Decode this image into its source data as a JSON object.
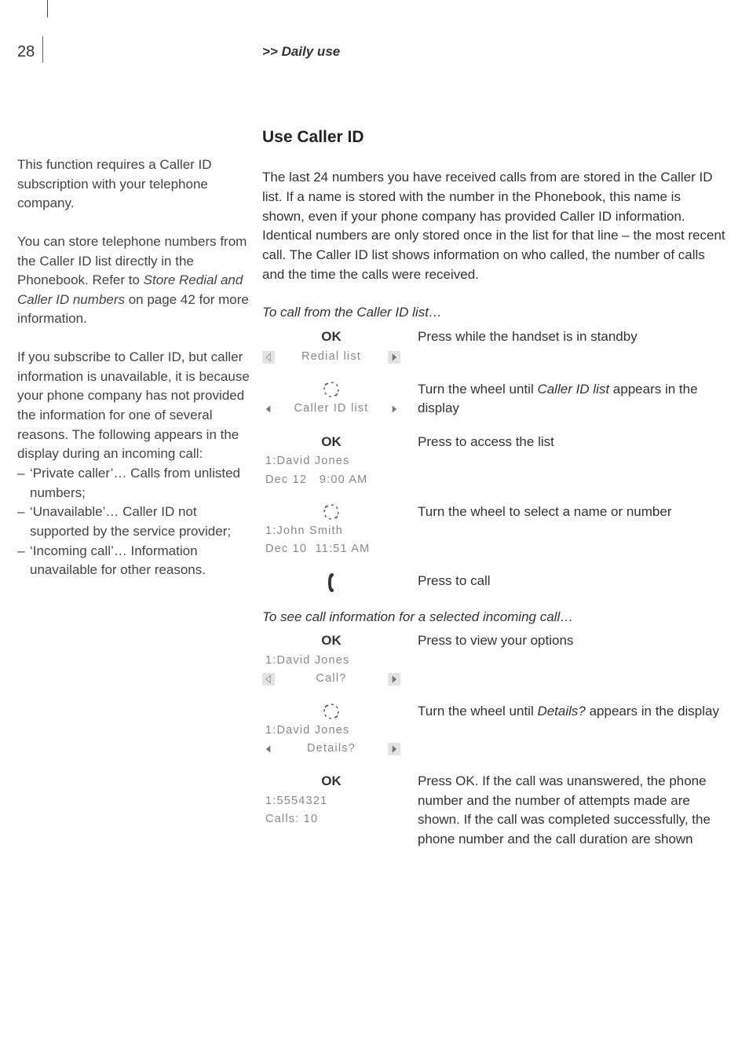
{
  "page_number": "28",
  "running_head": ">> Daily use",
  "sidebar": {
    "p1": "This function requires a Caller ID subscription with your telephone company.",
    "p2_a": "You can store telephone numbers from the Caller ID list directly in the Phonebook. Refer to ",
    "p2_ital": "Store Redial and Caller ID numbers",
    "p2_b": " on page 42 for more information.",
    "p3": "If you subscribe to Caller ID, but caller information is unavailable, it is because your phone company has not provided the information for one of several reasons. The following appears in the display during an incoming call:",
    "bullets": [
      "‘Private caller’… Calls from unlisted numbers;",
      "‘Unavailable’… Caller ID not supported by the service provider;",
      "‘Incoming call’… Information unavailable for other reasons."
    ]
  },
  "main": {
    "title": "Use Caller ID",
    "intro": "The last 24 numbers you have received calls from are stored in the Caller ID list. If a name is stored with the number in the Phonebook, this name is shown, even if your phone company has provided Caller ID information. Identical numbers are only stored once in the list for that line – the most recent call. The Caller ID list shows information on who called, the number of calls and the time the calls were received.",
    "sub1": "To call from the Caller ID list…",
    "steps1": [
      {
        "icon_top": "OK",
        "display_bar": "Redial list",
        "left_arrow_grey": true,
        "left_filled": false,
        "right_arrow_grey": true,
        "right_filled": true,
        "text_a": "Press while the handset is in standby"
      },
      {
        "icon_svg": "wheel",
        "display_bar": "Caller ID list",
        "left_arrow_grey": false,
        "left_filled": true,
        "right_arrow_grey": false,
        "right_filled": true,
        "text_a": "Turn the wheel until ",
        "text_ital": "Caller ID list",
        "text_b": " appears in the display"
      },
      {
        "icon_top": "OK",
        "display_lines": [
          "1:David Jones",
          "Dec 12   9:00 AM"
        ],
        "text_a": "Press to access the list"
      },
      {
        "icon_svg": "wheel",
        "display_lines": [
          "1:John Smith",
          "Dec 10  11:51 AM"
        ],
        "text_a": "Turn the wheel to select a name or number"
      },
      {
        "icon_svg": "phone",
        "text_a": "Press to call"
      }
    ],
    "sub2": "To see call information for a selected incoming call…",
    "steps2": [
      {
        "icon_top": "OK",
        "display_lines_above_bar": [
          "1:David Jones"
        ],
        "display_bar": "Call?",
        "left_arrow_grey": true,
        "left_filled": false,
        "right_arrow_grey": true,
        "right_filled": true,
        "text_a": "Press to view your options"
      },
      {
        "icon_svg": "wheel",
        "display_lines_above_bar": [
          "1:David Jones"
        ],
        "display_bar": "Details?",
        "left_arrow_grey": false,
        "left_filled": true,
        "right_arrow_grey": true,
        "right_filled": true,
        "text_a": "Turn the wheel until ",
        "text_ital": "Details?",
        "text_b": " appears in the display"
      },
      {
        "icon_top": "OK",
        "display_lines": [
          "1:5554321",
          "Calls: 10"
        ],
        "text_a": "Press OK. If the call was unanswered, the phone number and the number of attempts made are shown. If the call was completed successfully, the phone number and the call duration are shown"
      }
    ]
  },
  "colors": {
    "text": "#333333",
    "muted": "#888888",
    "arrow_bg": "#e3e3e3"
  }
}
